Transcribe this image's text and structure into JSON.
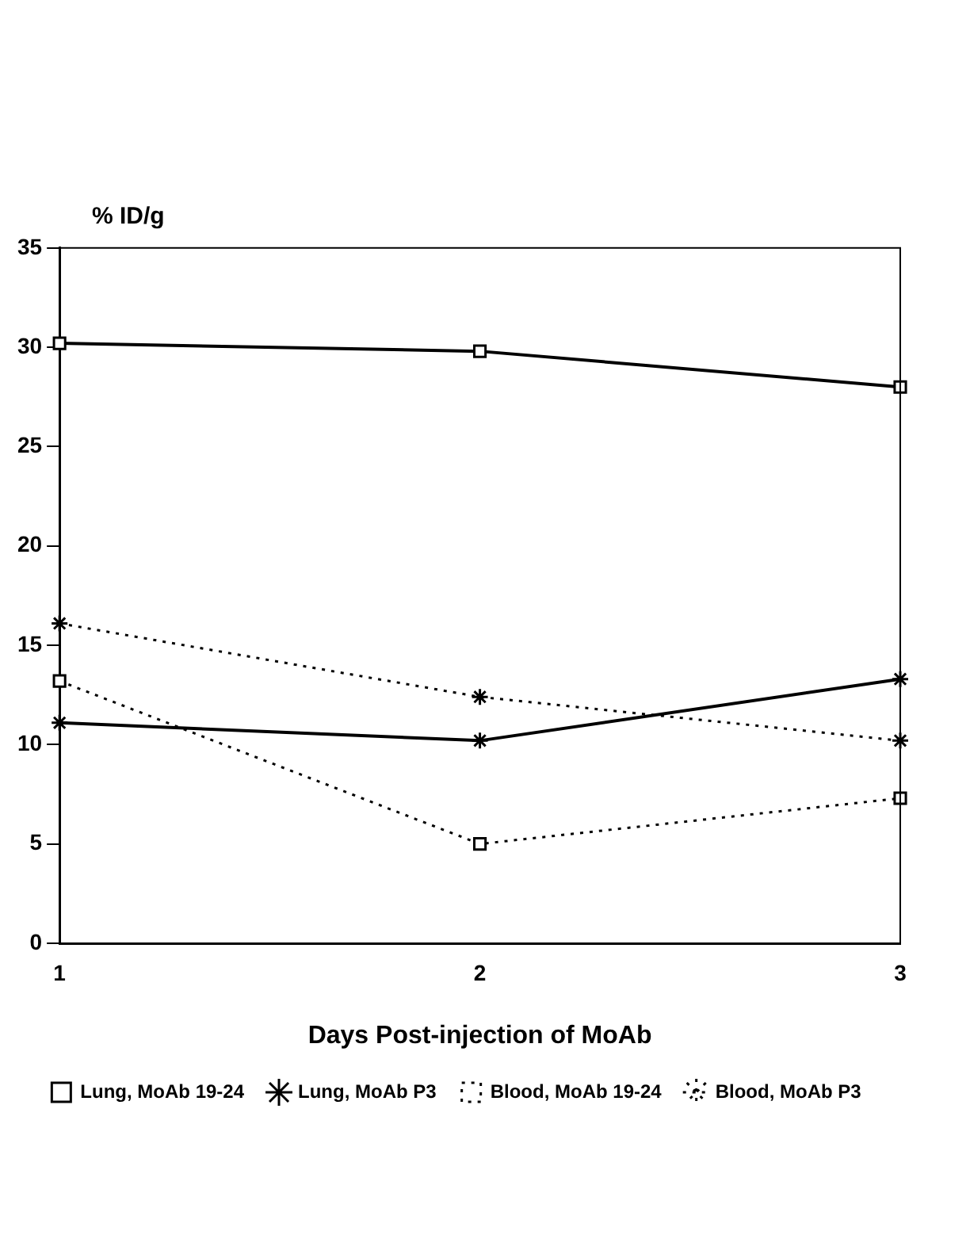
{
  "chart_data": {
    "type": "line",
    "ylabel": "% ID/g",
    "xlabel": "Days Post-injection of MoAb",
    "x": [
      1,
      2,
      3
    ],
    "xlim": [
      1,
      3
    ],
    "xticks": [
      1,
      2,
      3
    ],
    "ylim": [
      0,
      35
    ],
    "yticks": [
      0,
      5,
      10,
      15,
      20,
      25,
      30,
      35
    ],
    "grid": false,
    "legend": "bottom",
    "series": [
      {
        "name": "Lung, MoAb 19-24",
        "color": "#000000",
        "marker": "square",
        "line_style": "solid",
        "values": [
          30.2,
          29.8,
          28.0
        ]
      },
      {
        "name": "Lung, MoAb P3",
        "color": "#000000",
        "marker": "cross",
        "line_style": "solid",
        "values": [
          11.1,
          10.2,
          13.3
        ]
      },
      {
        "name": "Blood, MoAb 19-24",
        "color": "#000000",
        "marker": "square",
        "line_style": "dotted",
        "values": [
          13.2,
          5.0,
          7.3
        ]
      },
      {
        "name": "Blood, MoAb P3",
        "color": "#000000",
        "marker": "cross",
        "line_style": "dotted",
        "values": [
          16.1,
          12.4,
          10.2
        ]
      }
    ]
  }
}
